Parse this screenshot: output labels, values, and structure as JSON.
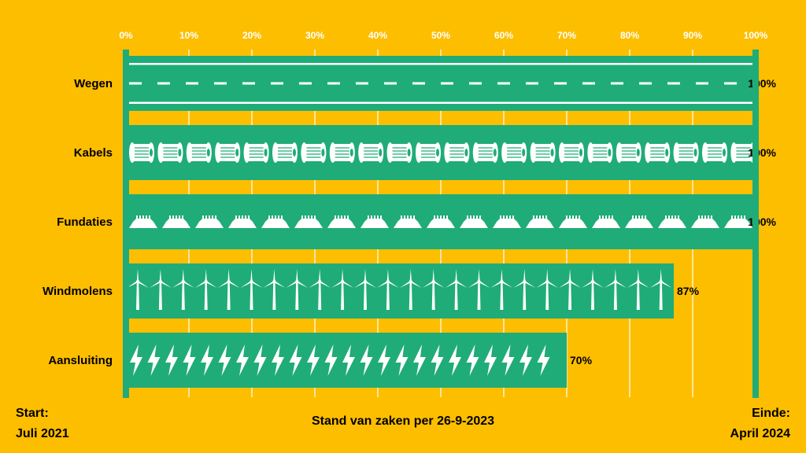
{
  "chart_data": {
    "type": "bar",
    "orientation": "horizontal",
    "categories": [
      "Wegen",
      "Kabels",
      "Fundaties",
      "Windmolens",
      "Aansluiting"
    ],
    "values": [
      100,
      100,
      100,
      87,
      70
    ],
    "value_labels": [
      "100%",
      "100%",
      "100%",
      "87%",
      "70%"
    ],
    "xticks": [
      "0%",
      "10%",
      "20%",
      "30%",
      "40%",
      "50%",
      "60%",
      "70%",
      "80%",
      "90%",
      "100%"
    ],
    "xlim": [
      0,
      100
    ],
    "grid": true,
    "bar_icons": [
      "road-dash-icon",
      "cable-spool-icon",
      "foundation-icon",
      "wind-turbine-icon",
      "lightning-bolt-icon"
    ]
  },
  "footer": {
    "start_line1": "Start:",
    "start_line2": "Juli 2021",
    "status": "Stand van zaken per 26-9-2023",
    "end_line1": "Einde:",
    "end_line2": "April 2024"
  },
  "colors": {
    "background": "#FDBE00",
    "bar": "#1FAC78",
    "icon": "#FFFFFF",
    "grid": "#FFFFFF",
    "text": "#000000"
  }
}
